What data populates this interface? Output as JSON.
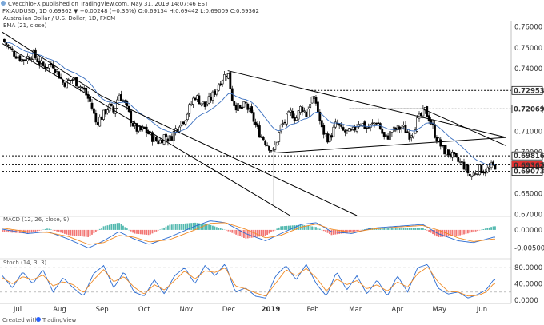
{
  "header": {
    "line1": "CVecchioFX published on TradingView.com, May 31, 2019 14:07:46 EST",
    "line2": "FX:AUDUSD, 1D 0.69362 ▼ +0.00248 (+0.36%) O:0.69134 H:0.69442 L:0.69009 C:0.69362",
    "title": "Australian Dollar / U.S. Dollar, 1D, FXCM",
    "ema_label": "EMA (21, close)"
  },
  "footer": {
    "created_with": "Created with",
    "brand": "TradingView"
  },
  "colors": {
    "bull_candle": "#ffffff",
    "bear_candle": "#000000",
    "ema": "#3a6fbf",
    "price_tag": "#e03131",
    "macd_line": "#2a6bd1",
    "signal_line": "#f08a24",
    "hist_pos": "#26a69a",
    "hist_neg": "#ef5350",
    "stoch_k": "#2a6bd1",
    "stoch_d": "#f08a24"
  },
  "chart_data": [
    {
      "type": "candlestick",
      "title": "Australian Dollar / U.S. Dollar, 1D, FXCM",
      "x_ticks": [
        "Jul",
        "Aug",
        "Sep",
        "Oct",
        "Nov",
        "Dec",
        "2019",
        "Feb",
        "Mar",
        "Apr",
        "May",
        "Jun"
      ],
      "x_tick_pos": [
        2018.5,
        2018.583,
        2018.667,
        2018.75,
        2018.833,
        2018.917,
        2019.0,
        2019.083,
        2019.167,
        2019.25,
        2019.333,
        2019.417
      ],
      "y_ticks": [
        "0.76000",
        "0.75000",
        "0.74000",
        "0.73000",
        "0.72000",
        "0.71000",
        "0.70000",
        "0.69000",
        "0.68000",
        "0.67000"
      ],
      "ylim": [
        0.6695,
        0.7622
      ],
      "xlim": [
        2018.47,
        2019.47
      ],
      "ema_name": "EMA (21, close)",
      "anchors": [
        [
          2018.47,
          0.754
        ],
        [
          2018.49,
          0.748
        ],
        [
          2018.51,
          0.744
        ],
        [
          2018.53,
          0.747
        ],
        [
          2018.55,
          0.741
        ],
        [
          2018.57,
          0.742
        ],
        [
          2018.59,
          0.733
        ],
        [
          2018.61,
          0.735
        ],
        [
          2018.63,
          0.73
        ],
        [
          2018.645,
          0.723
        ],
        [
          2018.655,
          0.714
        ],
        [
          2018.67,
          0.718
        ],
        [
          2018.68,
          0.722
        ],
        [
          2018.69,
          0.719
        ],
        [
          2018.7,
          0.728
        ],
        [
          2018.71,
          0.724
        ],
        [
          2018.72,
          0.718
        ],
        [
          2018.73,
          0.712
        ],
        [
          2018.74,
          0.71
        ],
        [
          2018.75,
          0.711
        ],
        [
          2018.77,
          0.706
        ],
        [
          2018.78,
          0.705
        ],
        [
          2018.79,
          0.708
        ],
        [
          2018.8,
          0.706
        ],
        [
          2018.82,
          0.714
        ],
        [
          2018.83,
          0.716
        ],
        [
          2018.85,
          0.727
        ],
        [
          2018.87,
          0.722
        ],
        [
          2018.885,
          0.727
        ],
        [
          2018.9,
          0.734
        ],
        [
          2018.915,
          0.7385
        ],
        [
          2018.925,
          0.724
        ],
        [
          2018.94,
          0.72
        ],
        [
          2018.95,
          0.723
        ],
        [
          2018.965,
          0.716
        ],
        [
          2018.975,
          0.71
        ],
        [
          2018.99,
          0.705
        ],
        [
          2019.005,
          0.7
        ],
        [
          2019.02,
          0.712
        ],
        [
          2019.04,
          0.719
        ],
        [
          2019.05,
          0.716
        ],
        [
          2019.06,
          0.722
        ],
        [
          2019.07,
          0.718
        ],
        [
          2019.08,
          0.726
        ],
        [
          2019.09,
          0.7235
        ],
        [
          2019.1,
          0.711
        ],
        [
          2019.115,
          0.706
        ],
        [
          2019.13,
          0.714
        ],
        [
          2019.14,
          0.71
        ],
        [
          2019.16,
          0.709
        ],
        [
          2019.175,
          0.715
        ],
        [
          2019.19,
          0.711
        ],
        [
          2019.21,
          0.715
        ],
        [
          2019.225,
          0.706
        ],
        [
          2019.24,
          0.71
        ],
        [
          2019.26,
          0.712
        ],
        [
          2019.275,
          0.708
        ],
        [
          2019.29,
          0.715
        ],
        [
          2019.305,
          0.72
        ],
        [
          2019.315,
          0.715
        ],
        [
          2019.325,
          0.708
        ],
        [
          2019.34,
          0.701
        ],
        [
          2019.355,
          0.699
        ],
        [
          2019.365,
          0.696
        ],
        [
          2019.38,
          0.694
        ],
        [
          2019.395,
          0.688
        ],
        [
          2019.41,
          0.692
        ],
        [
          2019.425,
          0.691
        ],
        [
          2019.44,
          0.6936
        ]
      ],
      "spike_low": [
        2019.006,
        0.6745
      ],
      "horizontal_levels": [
        {
          "value": 0.72953,
          "label": "0.72953",
          "x_from": 2019.08
        },
        {
          "value": 0.72069,
          "label": "0.72069",
          "x_from": 2019.155
        },
        {
          "value": 0.69816,
          "label": "0.69816",
          "x_from": 2018.47
        },
        {
          "value": 0.69386,
          "label": "0.69386",
          "x_from": 2018.47
        },
        {
          "value": 0.69362,
          "label": "0.69362",
          "x_from": null,
          "current": true
        },
        {
          "value": 0.69073,
          "label": "0.69073",
          "x_from": 2018.47
        }
      ],
      "trendlines": [
        {
          "from": [
            2018.47,
            0.752
          ],
          "to": [
            2019.038,
            0.6695
          ]
        },
        {
          "from": [
            2018.47,
            0.7575
          ],
          "to": [
            2018.665,
            0.727
          ]
        },
        {
          "from": [
            2018.665,
            0.727
          ],
          "to": [
            2019.17,
            0.6695
          ]
        },
        {
          "from": [
            2018.915,
            0.739
          ],
          "to": [
            2019.465,
            0.707
          ]
        },
        {
          "from": [
            2019.005,
            0.6995
          ],
          "to": [
            2019.465,
            0.707
          ]
        },
        {
          "from": [
            2019.155,
            0.7207
          ],
          "to": [
            2019.3,
            0.7207
          ]
        },
        {
          "from": [
            2019.3,
            0.7207
          ],
          "to": [
            2019.465,
            0.703
          ]
        }
      ]
    },
    {
      "type": "bar",
      "name": "MACD (12, 26, close, 9)",
      "y_ticks": [
        "0.00000",
        "-0.00500"
      ],
      "ylim": [
        -0.0075,
        0.0035
      ],
      "macd_anchors": [
        [
          2018.47,
          0.0002
        ],
        [
          2018.52,
          -0.001
        ],
        [
          2018.56,
          -0.0005
        ],
        [
          2018.6,
          -0.0025
        ],
        [
          2018.64,
          -0.005
        ],
        [
          2018.67,
          -0.003
        ],
        [
          2018.7,
          -0.0005
        ],
        [
          2018.73,
          -0.0025
        ],
        [
          2018.76,
          -0.004
        ],
        [
          2018.8,
          -0.002
        ],
        [
          2018.85,
          0.001
        ],
        [
          2018.88,
          0.0025
        ],
        [
          2018.91,
          0.002
        ],
        [
          2018.95,
          -0.001
        ],
        [
          2018.99,
          -0.003
        ],
        [
          2019.02,
          -0.001
        ],
        [
          2019.06,
          0.0015
        ],
        [
          2019.09,
          0.002
        ],
        [
          2019.12,
          -0.0005
        ],
        [
          2019.16,
          -0.001
        ],
        [
          2019.2,
          0.0005
        ],
        [
          2019.25,
          0.001
        ],
        [
          2019.3,
          0.0015
        ],
        [
          2019.33,
          -0.001
        ],
        [
          2019.37,
          -0.003
        ],
        [
          2019.4,
          -0.0035
        ],
        [
          2019.44,
          -0.002
        ]
      ],
      "signal_anchors": [
        [
          2018.47,
          0.0005
        ],
        [
          2018.52,
          -0.0005
        ],
        [
          2018.56,
          -0.0007
        ],
        [
          2018.6,
          -0.0018
        ],
        [
          2018.64,
          -0.004
        ],
        [
          2018.67,
          -0.0035
        ],
        [
          2018.7,
          -0.0015
        ],
        [
          2018.73,
          -0.002
        ],
        [
          2018.76,
          -0.0033
        ],
        [
          2018.8,
          -0.0027
        ],
        [
          2018.85,
          0.0
        ],
        [
          2018.88,
          0.0018
        ],
        [
          2018.91,
          0.002
        ],
        [
          2018.95,
          0.0002
        ],
        [
          2018.99,
          -0.0022
        ],
        [
          2019.02,
          -0.0015
        ],
        [
          2019.06,
          0.0008
        ],
        [
          2019.09,
          0.0016
        ],
        [
          2019.12,
          0.0002
        ],
        [
          2019.16,
          -0.0007
        ],
        [
          2019.2,
          0.0002
        ],
        [
          2019.25,
          0.0008
        ],
        [
          2019.3,
          0.0012
        ],
        [
          2019.33,
          0.0
        ],
        [
          2019.37,
          -0.0022
        ],
        [
          2019.4,
          -0.0032
        ],
        [
          2019.44,
          -0.0025
        ]
      ]
    },
    {
      "type": "line",
      "name": "Stoch (14, 3, 3)",
      "y_ticks": [
        "80.0000",
        "40.0000",
        "0.0000"
      ],
      "ylim": [
        -4,
        100
      ],
      "k_anchors": [
        [
          2018.47,
          60
        ],
        [
          2018.49,
          30
        ],
        [
          2018.51,
          70
        ],
        [
          2018.53,
          40
        ],
        [
          2018.55,
          75
        ],
        [
          2018.57,
          20
        ],
        [
          2018.59,
          55
        ],
        [
          2018.61,
          30
        ],
        [
          2018.63,
          10
        ],
        [
          2018.65,
          65
        ],
        [
          2018.67,
          85
        ],
        [
          2018.69,
          30
        ],
        [
          2018.71,
          70
        ],
        [
          2018.73,
          20
        ],
        [
          2018.75,
          10
        ],
        [
          2018.77,
          50
        ],
        [
          2018.79,
          15
        ],
        [
          2018.81,
          60
        ],
        [
          2018.83,
          80
        ],
        [
          2018.85,
          40
        ],
        [
          2018.87,
          85
        ],
        [
          2018.89,
          60
        ],
        [
          2018.91,
          90
        ],
        [
          2018.93,
          20
        ],
        [
          2018.95,
          30
        ],
        [
          2018.97,
          10
        ],
        [
          2018.99,
          5
        ],
        [
          2019.01,
          60
        ],
        [
          2019.03,
          85
        ],
        [
          2019.05,
          50
        ],
        [
          2019.07,
          88
        ],
        [
          2019.09,
          40
        ],
        [
          2019.11,
          10
        ],
        [
          2019.13,
          70
        ],
        [
          2019.15,
          25
        ],
        [
          2019.17,
          60
        ],
        [
          2019.19,
          15
        ],
        [
          2019.21,
          50
        ],
        [
          2019.23,
          10
        ],
        [
          2019.25,
          60
        ],
        [
          2019.27,
          20
        ],
        [
          2019.29,
          80
        ],
        [
          2019.31,
          88
        ],
        [
          2019.33,
          30
        ],
        [
          2019.35,
          15
        ],
        [
          2019.37,
          20
        ],
        [
          2019.39,
          5
        ],
        [
          2019.41,
          15
        ],
        [
          2019.425,
          25
        ],
        [
          2019.44,
          50
        ]
      ],
      "d_anchors": [
        [
          2018.47,
          55
        ],
        [
          2018.49,
          40
        ],
        [
          2018.51,
          58
        ],
        [
          2018.53,
          50
        ],
        [
          2018.55,
          62
        ],
        [
          2018.57,
          35
        ],
        [
          2018.59,
          45
        ],
        [
          2018.61,
          38
        ],
        [
          2018.63,
          18
        ],
        [
          2018.65,
          50
        ],
        [
          2018.67,
          75
        ],
        [
          2018.69,
          45
        ],
        [
          2018.71,
          58
        ],
        [
          2018.73,
          32
        ],
        [
          2018.75,
          15
        ],
        [
          2018.77,
          38
        ],
        [
          2018.79,
          25
        ],
        [
          2018.81,
          48
        ],
        [
          2018.83,
          72
        ],
        [
          2018.85,
          52
        ],
        [
          2018.87,
          72
        ],
        [
          2018.89,
          68
        ],
        [
          2018.91,
          80
        ],
        [
          2018.93,
          35
        ],
        [
          2018.95,
          28
        ],
        [
          2018.97,
          18
        ],
        [
          2018.99,
          10
        ],
        [
          2019.01,
          42
        ],
        [
          2019.03,
          75
        ],
        [
          2019.05,
          60
        ],
        [
          2019.07,
          78
        ],
        [
          2019.09,
          55
        ],
        [
          2019.11,
          22
        ],
        [
          2019.13,
          52
        ],
        [
          2019.15,
          38
        ],
        [
          2019.17,
          48
        ],
        [
          2019.19,
          28
        ],
        [
          2019.21,
          38
        ],
        [
          2019.23,
          22
        ],
        [
          2019.25,
          45
        ],
        [
          2019.27,
          32
        ],
        [
          2019.29,
          65
        ],
        [
          2019.31,
          82
        ],
        [
          2019.33,
          45
        ],
        [
          2019.35,
          22
        ],
        [
          2019.37,
          20
        ],
        [
          2019.39,
          10
        ],
        [
          2019.41,
          12
        ],
        [
          2019.425,
          20
        ],
        [
          2019.44,
          40
        ]
      ],
      "ref_levels": [
        80,
        20
      ]
    }
  ]
}
